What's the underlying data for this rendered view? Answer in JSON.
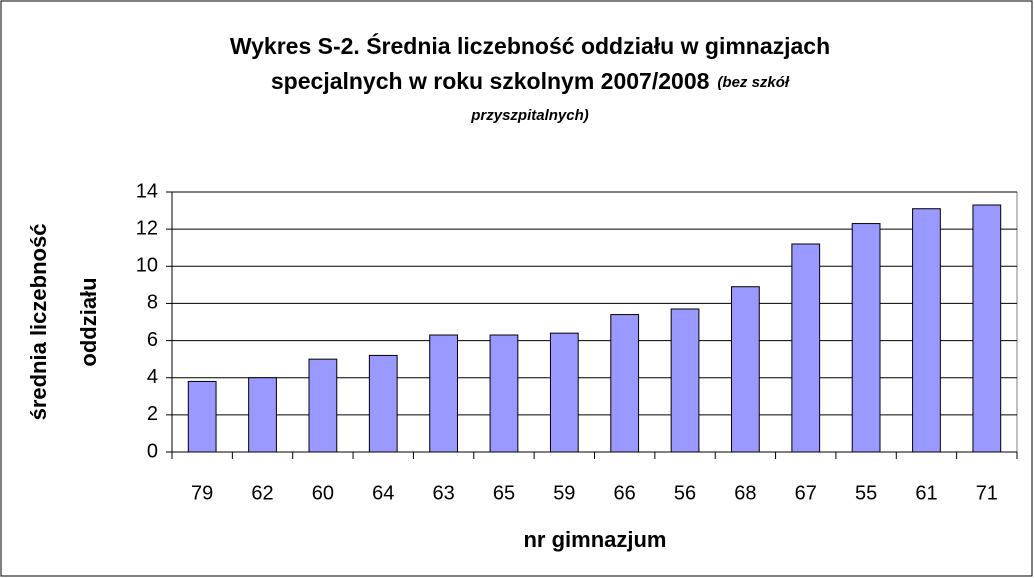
{
  "chart_data": {
    "type": "bar",
    "title": [
      "Wykres S-2. Średnia liczebność oddziału w gimnazjach",
      "specjalnych w roku szkolnym 2007/2008"
    ],
    "subtitle": [
      "(bez szkół",
      "przyszpitalnych)"
    ],
    "x_label": "nr gimnazjum",
    "y_label": [
      "średnia liczebność",
      "oddziału"
    ],
    "categories": [
      "79",
      "62",
      "60",
      "64",
      "63",
      "65",
      "59",
      "66",
      "56",
      "68",
      "67",
      "55",
      "61",
      "71"
    ],
    "values": [
      3.8,
      4.0,
      5.0,
      5.2,
      6.3,
      6.3,
      6.4,
      7.4,
      7.7,
      8.9,
      11.2,
      12.3,
      13.1,
      13.3
    ],
    "color": "#9999ff",
    "ylim": [
      0,
      14
    ],
    "yticks": [
      0,
      2,
      4,
      6,
      8,
      10,
      12,
      14
    ],
    "grid": true
  }
}
